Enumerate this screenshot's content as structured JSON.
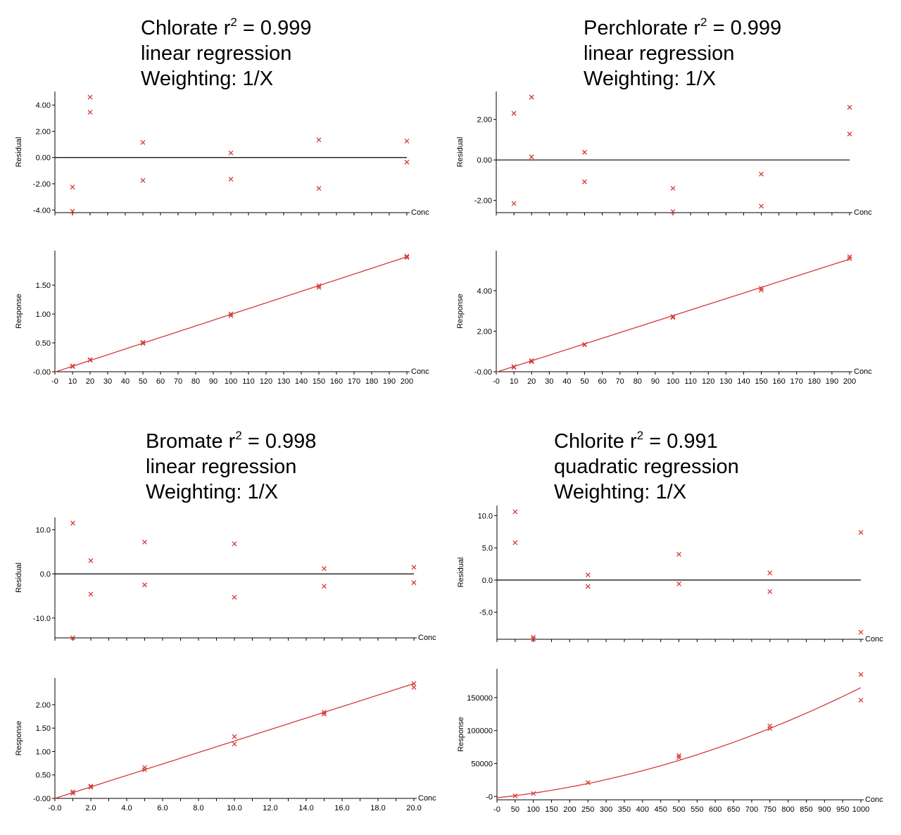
{
  "colors": {
    "marker": "#d63a3a",
    "fit": "#d63a3a",
    "zero_line": "#000000",
    "axis": "#000000"
  },
  "panels": [
    {
      "id": "chlorate",
      "analyte": "Chlorate",
      "r2_label": "r",
      "r2_sup": "2",
      "r2_value": "= 0.999",
      "regression": "linear regression",
      "weighting": "Weighting: 1/X"
    },
    {
      "id": "perchlorate",
      "analyte": "Perchlorate",
      "r2_label": "r",
      "r2_sup": "2",
      "r2_value": "= 0.999",
      "regression": "linear regression",
      "weighting": "Weighting: 1/X"
    },
    {
      "id": "bromate",
      "analyte": "Bromate",
      "r2_label": "r",
      "r2_sup": "2",
      "r2_value": "= 0.998",
      "regression": "linear regression",
      "weighting": "Weighting: 1/X"
    },
    {
      "id": "chlorite",
      "analyte": "Chlorite",
      "r2_label": "r",
      "r2_sup": "2",
      "r2_value": "= 0.991",
      "regression": "quadratic regression",
      "weighting": "Weighting: 1/X"
    }
  ],
  "chart_data": [
    {
      "panel": 0,
      "type": "scatter",
      "xlabel": "Conc",
      "ylabel": "Residual",
      "xlim": [
        0,
        200
      ],
      "ylim": [
        -4.2,
        4.6
      ],
      "yticks": [
        4.0,
        2.0,
        0.0,
        -2.0,
        -4.0
      ],
      "ytick_labels": [
        "4.00",
        "2.00",
        "0.00",
        "-2.00",
        "-4.00"
      ],
      "zero_line": true,
      "points": [
        [
          10,
          -2.25
        ],
        [
          10,
          -4.1
        ],
        [
          20,
          4.6
        ],
        [
          20,
          3.45
        ],
        [
          50,
          1.15
        ],
        [
          50,
          -1.75
        ],
        [
          100,
          0.35
        ],
        [
          100,
          -1.65
        ],
        [
          150,
          1.35
        ],
        [
          150,
          -2.35
        ],
        [
          200,
          1.25
        ],
        [
          200,
          -0.35
        ]
      ]
    },
    {
      "panel": 0,
      "type": "scatter",
      "xlabel": "Conc",
      "ylabel": "Response",
      "xlim": [
        0,
        200
      ],
      "ylim": [
        0,
        2.0
      ],
      "xticks": [
        0,
        10,
        20,
        30,
        40,
        50,
        60,
        70,
        80,
        90,
        100,
        110,
        120,
        130,
        140,
        150,
        160,
        170,
        180,
        190,
        200
      ],
      "xtick_labels": [
        "-0",
        "10",
        "20",
        "30",
        "40",
        "50",
        "60",
        "70",
        "80",
        "90",
        "100",
        "110",
        "120",
        "130",
        "140",
        "150",
        "160",
        "170",
        "180",
        "190",
        "200"
      ],
      "yticks": [
        1.5,
        1.0,
        0.5,
        0.0
      ],
      "ytick_labels": [
        "1.50",
        "1.00",
        "0.50",
        "-0.00"
      ],
      "points": [
        [
          10,
          0.1
        ],
        [
          10,
          0.09
        ],
        [
          20,
          0.21
        ],
        [
          20,
          0.2
        ],
        [
          50,
          0.51
        ],
        [
          50,
          0.49
        ],
        [
          100,
          1.0
        ],
        [
          100,
          0.97
        ],
        [
          150,
          1.49
        ],
        [
          150,
          1.46
        ],
        [
          200,
          2.0
        ],
        [
          200,
          1.98
        ]
      ],
      "fit": {
        "kind": "linear",
        "coef": [
          -0.005,
          0.00998
        ]
      }
    },
    {
      "panel": 1,
      "type": "scatter",
      "xlabel": "Conc",
      "ylabel": "Residual",
      "xlim": [
        0,
        200
      ],
      "ylim": [
        -2.6,
        3.1
      ],
      "yticks": [
        2.0,
        0.0,
        -2.0
      ],
      "ytick_labels": [
        "2.00",
        "0.00",
        "-2.00"
      ],
      "zero_line": true,
      "points": [
        [
          10,
          2.3
        ],
        [
          10,
          -2.15
        ],
        [
          20,
          3.1
        ],
        [
          20,
          0.15
        ],
        [
          50,
          0.38
        ],
        [
          50,
          -1.08
        ],
        [
          100,
          -1.4
        ],
        [
          100,
          -2.55
        ],
        [
          150,
          -0.7
        ],
        [
          150,
          -2.28
        ],
        [
          200,
          2.6
        ],
        [
          200,
          1.28
        ]
      ]
    },
    {
      "panel": 1,
      "type": "scatter",
      "xlabel": "Conc",
      "ylabel": "Response",
      "xlim": [
        0,
        200
      ],
      "ylim": [
        0,
        5.7
      ],
      "xticks": [
        0,
        10,
        20,
        30,
        40,
        50,
        60,
        70,
        80,
        90,
        100,
        110,
        120,
        130,
        140,
        150,
        160,
        170,
        180,
        190,
        200
      ],
      "xtick_labels": [
        "-0",
        "10",
        "20",
        "30",
        "40",
        "50",
        "60",
        "70",
        "80",
        "90",
        "100",
        "110",
        "120",
        "130",
        "140",
        "150",
        "160",
        "170",
        "180",
        "190",
        "200"
      ],
      "yticks": [
        4.0,
        2.0,
        0.0
      ],
      "ytick_labels": [
        "4.00",
        "2.00",
        "-0.00"
      ],
      "points": [
        [
          10,
          0.25
        ],
        [
          10,
          0.22
        ],
        [
          20,
          0.55
        ],
        [
          20,
          0.5
        ],
        [
          50,
          1.35
        ],
        [
          50,
          1.33
        ],
        [
          100,
          2.72
        ],
        [
          100,
          2.68
        ],
        [
          150,
          4.12
        ],
        [
          150,
          4.03
        ],
        [
          200,
          5.68
        ],
        [
          200,
          5.58
        ]
      ],
      "fit": {
        "kind": "linear",
        "coef": [
          -0.02,
          0.0279
        ]
      }
    },
    {
      "panel": 2,
      "type": "scatter",
      "xlabel": "Conc",
      "ylabel": "Residual",
      "xlim": [
        0,
        20
      ],
      "ylim": [
        -14.5,
        11.5
      ],
      "yticks": [
        10.0,
        0.0,
        -10.0
      ],
      "ytick_labels": [
        "10.0",
        "0.0",
        "-10.0"
      ],
      "zero_line": true,
      "points": [
        [
          1,
          11.5
        ],
        [
          1,
          -14.5
        ],
        [
          2,
          3.0
        ],
        [
          2,
          -4.6
        ],
        [
          5,
          7.2
        ],
        [
          5,
          -2.5
        ],
        [
          10,
          6.8
        ],
        [
          10,
          -5.3
        ],
        [
          15,
          1.2
        ],
        [
          15,
          -2.8
        ],
        [
          20,
          1.5
        ],
        [
          20,
          -2.0
        ]
      ]
    },
    {
      "panel": 2,
      "type": "scatter",
      "xlabel": "Conc",
      "ylabel": "Response",
      "xlim": [
        0,
        20
      ],
      "ylim": [
        0,
        2.45
      ],
      "xticks": [
        0,
        2,
        4,
        6,
        8,
        10,
        12,
        14,
        16,
        18,
        20
      ],
      "xtick_labels": [
        "-0.0",
        "2.0",
        "4.0",
        "6.0",
        "8.0",
        "10.0",
        "12.0",
        "14.0",
        "16.0",
        "18.0",
        "20.0"
      ],
      "yticks": [
        2.0,
        1.5,
        1.0,
        0.5,
        0.0
      ],
      "ytick_labels": [
        "2.00",
        "1.50",
        "1.00",
        "0.50",
        "-0.00"
      ],
      "points": [
        [
          1,
          0.14
        ],
        [
          1,
          0.11
        ],
        [
          2,
          0.26
        ],
        [
          2,
          0.24
        ],
        [
          5,
          0.66
        ],
        [
          5,
          0.61
        ],
        [
          10,
          1.32
        ],
        [
          10,
          1.16
        ],
        [
          15,
          1.84
        ],
        [
          15,
          1.8
        ],
        [
          20,
          2.45
        ],
        [
          20,
          2.37
        ]
      ],
      "fit": {
        "kind": "linear",
        "coef": [
          0.0,
          0.1225
        ]
      }
    },
    {
      "panel": 3,
      "type": "scatter",
      "xlabel": "Conc",
      "ylabel": "Residual",
      "xlim": [
        0,
        1000
      ],
      "ylim": [
        -9.2,
        10.7
      ],
      "yticks": [
        10.0,
        5.0,
        0.0,
        -5.0
      ],
      "ytick_labels": [
        "10.0",
        "5.0",
        "0.0",
        "-5.0"
      ],
      "zero_line": true,
      "points": [
        [
          50,
          10.6
        ],
        [
          50,
          5.8
        ],
        [
          100,
          -8.9
        ],
        [
          100,
          -9.2
        ],
        [
          250,
          0.8
        ],
        [
          250,
          -1.0
        ],
        [
          500,
          4.0
        ],
        [
          500,
          -0.6
        ],
        [
          750,
          1.1
        ],
        [
          750,
          -1.8
        ],
        [
          1000,
          7.4
        ],
        [
          1000,
          -8.1
        ]
      ]
    },
    {
      "panel": 3,
      "type": "scatter",
      "xlabel": "Conc",
      "ylabel": "Response",
      "xlim": [
        0,
        1000
      ],
      "ylim": [
        -5000,
        185000
      ],
      "xticks": [
        0,
        50,
        100,
        150,
        200,
        250,
        300,
        350,
        400,
        450,
        500,
        550,
        600,
        650,
        700,
        750,
        800,
        850,
        900,
        950,
        1000
      ],
      "xtick_labels": [
        "-0",
        "50",
        "100",
        "150",
        "200",
        "250",
        "300",
        "350",
        "400",
        "450",
        "500",
        "550",
        "600",
        "650",
        "700",
        "750",
        "800",
        "850",
        "900",
        "950",
        "1000"
      ],
      "yticks": [
        150000,
        100000,
        50000,
        0
      ],
      "ytick_labels": [
        "150000",
        "100000",
        "50000",
        "-0"
      ],
      "points": [
        [
          50,
          1000
        ],
        [
          100,
          4500
        ],
        [
          250,
          21000
        ],
        [
          500,
          62000
        ],
        [
          500,
          59000
        ],
        [
          750,
          107000
        ],
        [
          750,
          103000
        ],
        [
          1000,
          185000
        ],
        [
          1000,
          146000
        ]
      ],
      "fit": {
        "kind": "quadratic",
        "coef": [
          -2000,
          60,
          0.107
        ]
      }
    }
  ]
}
